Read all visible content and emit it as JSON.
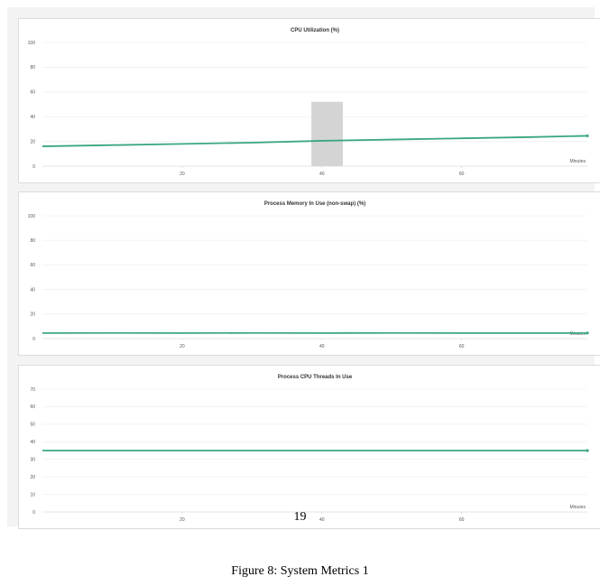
{
  "figure": {
    "caption": "Figure 8: System Metrics 1",
    "page_number": "19"
  },
  "colors": {
    "series": "#3aa77d",
    "highlight": "#d4d4d4",
    "panel_bg": "#ffffff",
    "frame_bg": "#f3f3f3"
  },
  "chart_data": [
    {
      "type": "line",
      "title": "CPU Utilization (%)",
      "xlabel": "Minutes",
      "ylabel": "",
      "xlim": [
        0,
        78
      ],
      "ylim": [
        0,
        100
      ],
      "yticks": [
        0,
        20,
        40,
        60,
        80,
        100
      ],
      "xticks": [
        20,
        40,
        60
      ],
      "grid": true,
      "series": [
        {
          "x": [
            0,
            10,
            20,
            30,
            40,
            50,
            60,
            70,
            78
          ],
          "y": [
            16,
            17,
            18,
            19,
            20.5,
            21.5,
            22.5,
            23.5,
            24.5
          ]
        }
      ],
      "highlight_region": {
        "x": [
          38.5,
          43
        ],
        "y": [
          0,
          52
        ]
      }
    },
    {
      "type": "line",
      "title": "Process Memory In Use (non-swap) (%)",
      "xlabel": "Minutes",
      "ylabel": "",
      "xlim": [
        0,
        78
      ],
      "ylim": [
        0,
        100
      ],
      "yticks": [
        0,
        20,
        40,
        60,
        80,
        100
      ],
      "xticks": [
        20,
        40,
        60
      ],
      "grid": true,
      "series": [
        {
          "x": [
            0,
            10,
            20,
            30,
            40,
            50,
            60,
            70,
            78
          ],
          "y": [
            4.5,
            4.6,
            4.5,
            4.6,
            4.5,
            4.6,
            4.5,
            4.5,
            4.5
          ]
        }
      ]
    },
    {
      "type": "line",
      "title": "Process CPU Threads In Use",
      "xlabel": "Minutes",
      "ylabel": "",
      "xlim": [
        0,
        78
      ],
      "ylim": [
        0,
        70
      ],
      "yticks": [
        0,
        10,
        20,
        30,
        40,
        50,
        60,
        70
      ],
      "xticks": [
        20,
        40,
        60
      ],
      "grid": true,
      "series": [
        {
          "x": [
            0,
            78
          ],
          "y": [
            35,
            35
          ]
        }
      ]
    }
  ]
}
